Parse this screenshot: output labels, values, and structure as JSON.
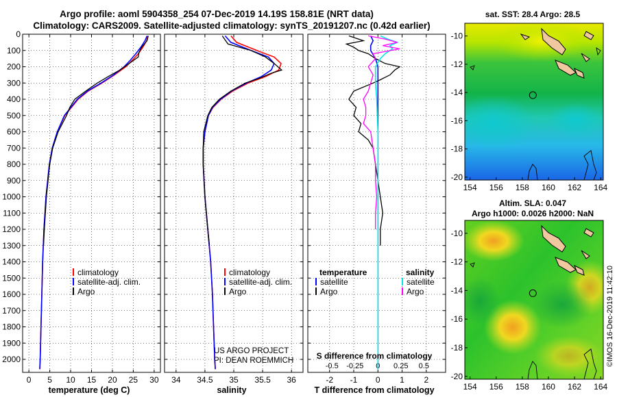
{
  "header": {
    "title_line1": "Argo profile: aoml 5904358_254 07-Dec-2019 14.19S 158.81E (NRT data)",
    "title_line2": "Climatology: CARS2009. Satellite-adjusted climatology: synTS_20191207.nc (0.42d earlier)"
  },
  "colors": {
    "climatology": "#ff0000",
    "satellite": "#0000ff",
    "argo": "#000000",
    "sat_salinity": "#00e5e5",
    "argo_salinity": "#ff00ff"
  },
  "chart_data": [
    {
      "type": "line",
      "name": "temperature-profile",
      "xlabel": "temperature (deg C)",
      "ylabel": "depth",
      "xlim": [
        -1.5,
        31.5
      ],
      "ylim": [
        2080,
        0
      ],
      "xticks": [
        "0",
        "5",
        "10",
        "15",
        "20",
        "25",
        "30"
      ],
      "xtick_values": [
        0,
        5,
        10,
        15,
        20,
        25,
        30
      ],
      "yticks": [
        "0",
        "100",
        "200",
        "300",
        "400",
        "500",
        "600",
        "700",
        "800",
        "900",
        "1000",
        "1100",
        "1200",
        "1300",
        "1400",
        "1500",
        "1600",
        "1700",
        "1800",
        "1900",
        "2000"
      ],
      "ytick_values": [
        0,
        100,
        200,
        300,
        400,
        500,
        600,
        700,
        800,
        900,
        1000,
        1100,
        1200,
        1300,
        1400,
        1500,
        1600,
        1700,
        1800,
        1900,
        2000
      ],
      "legend": [
        "climatology",
        "satellite-adj. clim.",
        "Argo"
      ],
      "series": [
        {
          "name": "climatology",
          "color": "#ff0000",
          "depth": [
            10,
            40,
            80,
            120,
            160,
            200,
            250,
            300,
            350,
            400,
            500,
            600,
            700,
            800,
            1000,
            1200,
            1400,
            1600,
            1800,
            2000,
            2060
          ],
          "values": [
            28.5,
            28.2,
            27.3,
            26.2,
            24.8,
            23.2,
            20.5,
            17.5,
            14.2,
            11.8,
            8.6,
            6.8,
            5.6,
            4.9,
            4.1,
            3.6,
            3.3,
            3.1,
            2.9,
            2.7,
            2.6
          ]
        },
        {
          "name": "satellite-adj. clim.",
          "color": "#0000ff",
          "depth": [
            10,
            40,
            80,
            120,
            160,
            200,
            250,
            300,
            350,
            400,
            500,
            600,
            700,
            800,
            1000,
            1200,
            1400,
            1600,
            1800,
            2000,
            2060
          ],
          "values": [
            28.3,
            27.8,
            26.8,
            25.6,
            24.3,
            22.8,
            20.3,
            17.3,
            14.0,
            11.6,
            8.5,
            6.8,
            5.6,
            4.9,
            4.1,
            3.6,
            3.3,
            3.1,
            2.9,
            2.7,
            2.6
          ]
        },
        {
          "name": "Argo",
          "color": "#000000",
          "depth": [
            10,
            40,
            80,
            110,
            140,
            180,
            220,
            260,
            300,
            350,
            400,
            450,
            500,
            600,
            700,
            800,
            1000,
            1200,
            1300
          ],
          "values": [
            28.6,
            28.3,
            27.0,
            26.4,
            26.2,
            24.0,
            21.8,
            19.0,
            16.4,
            13.6,
            11.0,
            9.8,
            9.0,
            7.0,
            5.7,
            5.0,
            4.2,
            3.7,
            3.5
          ]
        }
      ]
    },
    {
      "type": "line",
      "name": "salinity-profile",
      "xlabel": "salinity",
      "xlim": [
        33.8,
        36.2
      ],
      "ylim": [
        2080,
        0
      ],
      "xticks": [
        "34",
        "34.5",
        "35",
        "35.5",
        "36"
      ],
      "xtick_values": [
        34,
        34.5,
        35,
        35.5,
        36
      ],
      "legend": [
        "climatology",
        "satellite-adj. clim.",
        "Argo"
      ],
      "annotation_line1": "US ARGO PROJECT",
      "annotation_line2": "PI: DEAN ROEMMICH",
      "series": [
        {
          "name": "climatology",
          "color": "#ff0000",
          "depth": [
            10,
            50,
            100,
            140,
            180,
            220,
            260,
            300,
            350,
            400,
            450,
            500,
            600,
            700,
            800,
            1000,
            1200,
            1400,
            1600,
            1800,
            2000,
            2060
          ],
          "values": [
            34.95,
            35.05,
            35.4,
            35.7,
            35.82,
            35.78,
            35.55,
            35.25,
            34.98,
            34.78,
            34.64,
            34.56,
            34.5,
            34.47,
            34.47,
            34.5,
            34.55,
            34.6,
            34.63,
            34.65,
            34.67,
            34.68
          ]
        },
        {
          "name": "satellite-adj. clim.",
          "color": "#0000ff",
          "depth": [
            10,
            50,
            100,
            140,
            180,
            220,
            260,
            300,
            350,
            400,
            450,
            500,
            600,
            700,
            800,
            1000,
            1200,
            1400,
            1600,
            1800,
            2000,
            2060
          ],
          "values": [
            34.85,
            34.95,
            35.3,
            35.6,
            35.7,
            35.65,
            35.48,
            35.22,
            34.96,
            34.77,
            34.63,
            34.56,
            34.5,
            34.47,
            34.47,
            34.5,
            34.55,
            34.6,
            34.63,
            34.65,
            34.67,
            34.68
          ]
        },
        {
          "name": "Argo",
          "color": "#000000",
          "depth": [
            10,
            60,
            100,
            140,
            180,
            220,
            240,
            270,
            300,
            350,
            400,
            450,
            500,
            600,
            700,
            800,
            1000,
            1200,
            1300
          ],
          "values": [
            34.8,
            34.9,
            35.3,
            35.55,
            35.7,
            35.83,
            35.65,
            35.45,
            35.2,
            34.95,
            34.75,
            34.62,
            34.55,
            34.48,
            34.47,
            34.47,
            34.5,
            34.55,
            34.58
          ]
        }
      ]
    },
    {
      "type": "line",
      "name": "difference-profile",
      "xlabel": "T difference from climatology",
      "s_label": "S difference from climatology",
      "xlim": [
        -2.9,
        2.8
      ],
      "ylim": [
        2080,
        0
      ],
      "xticks": [
        "-2",
        "-1",
        "0",
        "1",
        "2"
      ],
      "xtick_values": [
        -2,
        -1,
        0,
        1,
        2
      ],
      "s_xticks": [
        "-0.5",
        "-0.25",
        "0",
        "0.25",
        "0.5"
      ],
      "s_xtick_values": [
        -1.9,
        -0.95,
        0,
        0.95,
        1.9
      ],
      "legend_temperature_title": "temperature",
      "legend_salinity_title": "salinity",
      "legend_left": [
        "satellite",
        "Argo"
      ],
      "legend_right": [
        "satellite",
        "Argo"
      ],
      "series": [
        {
          "name": "T satellite",
          "color": "#0000ff",
          "depth": [
            10,
            40,
            70,
            100,
            150,
            200,
            300,
            400,
            600,
            800,
            1000,
            2060
          ],
          "values": [
            -0.3,
            -0.2,
            -0.3,
            -0.3,
            -0.1,
            0,
            0,
            0,
            0,
            0,
            0,
            0
          ]
        },
        {
          "name": "T Argo",
          "color": "#000000",
          "depth": [
            10,
            40,
            60,
            80,
            100,
            120,
            150,
            180,
            200,
            220,
            250,
            280,
            300,
            350,
            400,
            450,
            500,
            550,
            600,
            650,
            700,
            800,
            900,
            1000,
            1100,
            1200,
            1300
          ],
          "values": [
            -1.2,
            -0.6,
            -1.3,
            -1.0,
            -0.8,
            -0.4,
            -0.1,
            0.3,
            0.9,
            0.7,
            0.5,
            0.1,
            -0.2,
            -1.0,
            -1.2,
            -0.9,
            -1.0,
            -0.7,
            -0.8,
            -0.4,
            -0.2,
            -0.1,
            0,
            0.1,
            0.2,
            0.1,
            0.1
          ]
        },
        {
          "name": "S satellite",
          "color": "#00e5e5",
          "depth": [
            10,
            30,
            50,
            70,
            90,
            120,
            150,
            200,
            300,
            400,
            600,
            800,
            1000,
            2060
          ],
          "values": [
            0.1,
            0.4,
            0.8,
            0.5,
            0.6,
            0.3,
            0.1,
            -0.1,
            -0.1,
            -0.05,
            0,
            0,
            0,
            0
          ]
        },
        {
          "name": "S Argo",
          "color": "#ff00ff",
          "depth": [
            10,
            30,
            50,
            70,
            90,
            120,
            150,
            200,
            250,
            300,
            350,
            400,
            450,
            500,
            550,
            600,
            700,
            800,
            900,
            1000,
            1100,
            1200
          ],
          "values": [
            -0.4,
            0.3,
            0.8,
            0.2,
            0.9,
            -0.2,
            -0.1,
            -0.4,
            -0.2,
            -0.3,
            -0.4,
            -0.6,
            -0.5,
            -0.5,
            -0.6,
            -0.3,
            -0.2,
            -0.1,
            -0.1,
            -0.05,
            -0.1,
            -0.1
          ]
        }
      ]
    },
    {
      "type": "heatmap",
      "name": "sst-map",
      "title": "sat. SST: 28.4 Argo: 28.5",
      "xlim": [
        153.6,
        164.2
      ],
      "ylim": [
        -20.2,
        -9.1
      ],
      "xticks": [
        "154",
        "156",
        "158",
        "160",
        "162",
        "164"
      ],
      "xtick_values": [
        154,
        156,
        158,
        160,
        162,
        164
      ],
      "yticks": [
        "-10",
        "-12",
        "-14",
        "-16",
        "-18",
        "-20"
      ],
      "ytick_values": [
        -10,
        -12,
        -14,
        -16,
        -18,
        -20
      ],
      "argo_position": [
        158.81,
        -14.19
      ]
    },
    {
      "type": "heatmap",
      "name": "sla-map",
      "title_line1": "Altim. SLA: 0.047",
      "title_line2": "Argo h1000: 0.0026 h2000: NaN",
      "xlim": [
        153.6,
        164.2
      ],
      "ylim": [
        -20.2,
        -9.1
      ],
      "xticks": [
        "154",
        "156",
        "158",
        "160",
        "162",
        "164"
      ],
      "xtick_values": [
        154,
        156,
        158,
        160,
        162,
        164
      ],
      "yticks": [
        "-10",
        "-12",
        "-14",
        "-16",
        "-18",
        "-20"
      ],
      "ytick_values": [
        -10,
        -12,
        -14,
        -16,
        -18,
        -20
      ],
      "argo_position": [
        158.81,
        -14.19
      ]
    }
  ],
  "footer": {
    "watermark": "©IMOS 16-Dec-2019 11:42:10"
  }
}
